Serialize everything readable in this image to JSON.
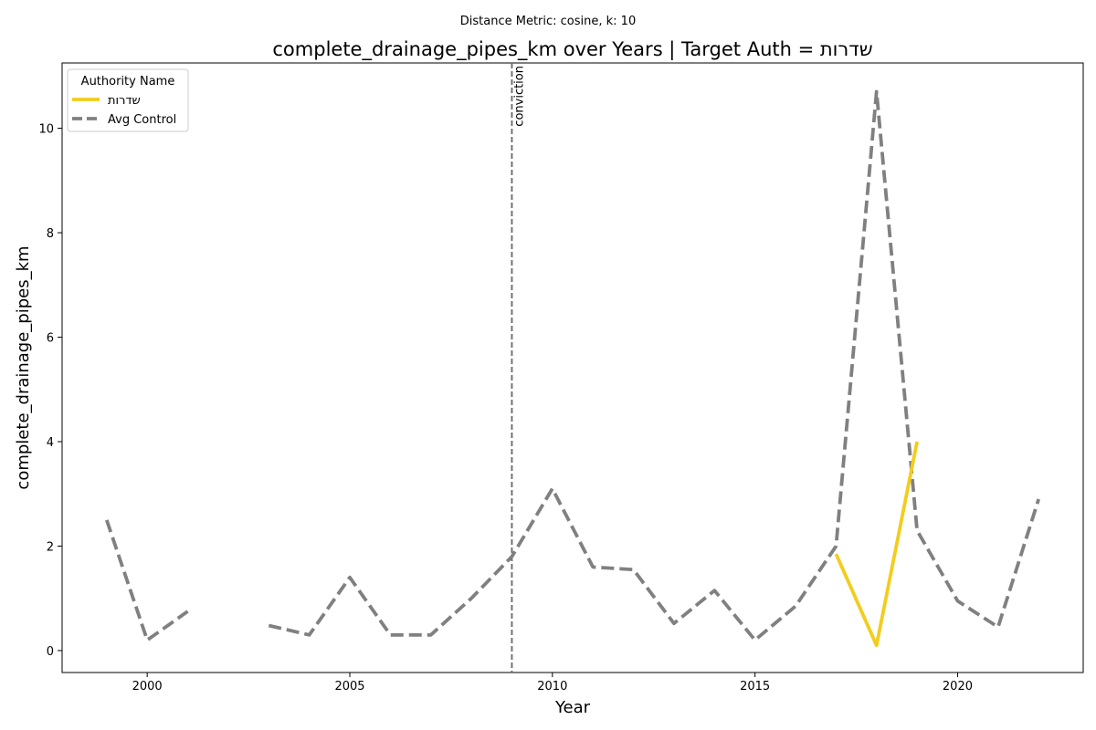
{
  "chart_data": {
    "type": "line",
    "suptitle": "Distance Metric: cosine, k: 10",
    "title": "complete_drainage_pipes_km over Years | Target Auth = שדרות",
    "xlabel": "Year",
    "ylabel": "complete_drainage_pipes_km",
    "xlim": [
      1997.9,
      2023.1
    ],
    "ylim": [
      -0.42,
      11.25
    ],
    "xticks": [
      2000,
      2005,
      2010,
      2015,
      2020
    ],
    "yticks": [
      0,
      2,
      4,
      6,
      8,
      10
    ],
    "grid": false,
    "legend": {
      "title": "Authority Name",
      "location": "top-left"
    },
    "series": [
      {
        "name": "שדרות",
        "color": "#f2cd1e",
        "style": "solid",
        "x": [
          2017,
          2018,
          2019
        ],
        "y": [
          1.85,
          0.1,
          4.0
        ]
      },
      {
        "name": "Avg Control",
        "color": "#808080",
        "style": "dashed",
        "x": [
          1999,
          2000,
          2001,
          2002,
          2003,
          2004,
          2005,
          2006,
          2007,
          2008,
          2009,
          2010,
          2011,
          2012,
          2013,
          2014,
          2015,
          2016,
          2017,
          2018,
          2019,
          2020,
          2021,
          2022
        ],
        "y": [
          2.5,
          0.2,
          0.75,
          null,
          0.48,
          0.3,
          1.4,
          0.3,
          0.3,
          1.0,
          1.8,
          3.1,
          1.6,
          1.55,
          0.52,
          1.15,
          0.2,
          0.85,
          2.0,
          10.7,
          2.3,
          0.95,
          0.45,
          2.9
        ]
      }
    ],
    "annotations": [
      {
        "type": "vline",
        "x": 2009,
        "label": "conviction",
        "color": "#666666",
        "style": "dashed"
      }
    ]
  }
}
